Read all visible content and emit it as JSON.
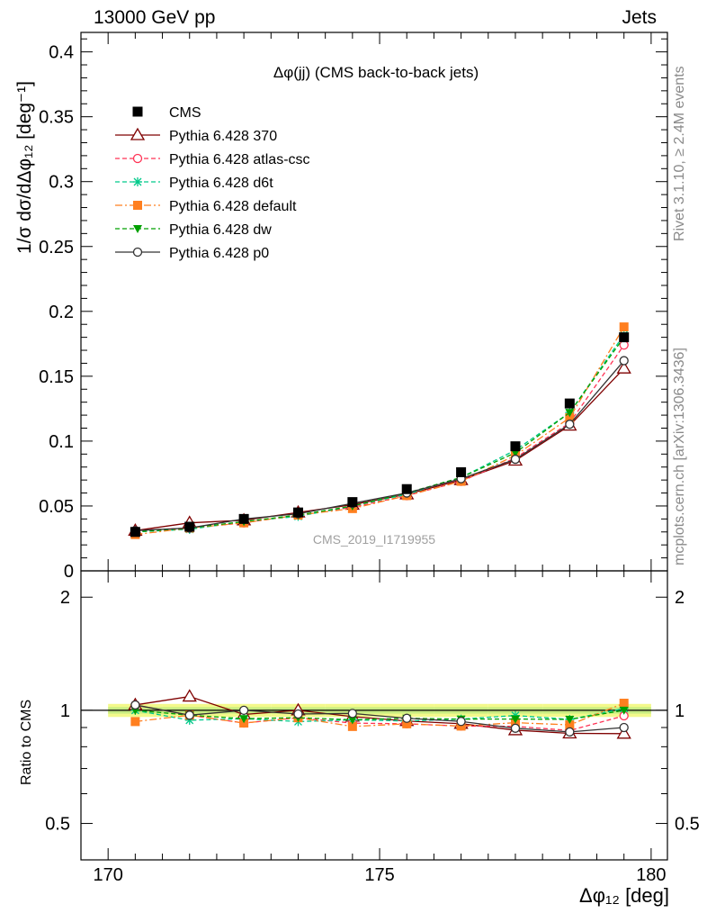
{
  "header": {
    "left": "13000 GeV pp",
    "right": "Jets",
    "rivet": "Rivet 3.1.10, ≥ 2.4M events",
    "mcplots": "mcplots.cern.ch [arXiv:1306.3436]"
  },
  "chart_data": {
    "type": "line",
    "title": "Δφ(jj) (CMS back-to-back jets)",
    "watermark": "CMS_2019_I1719955",
    "xlabel": "Δφ₁₂ [deg]",
    "ylabel": "1/σ dσ/dΔφ₁₂ [deg⁻¹]",
    "ratio_ylabel": "Ratio to CMS",
    "xlim": [
      169.5,
      180.3
    ],
    "ylim": [
      0,
      0.415
    ],
    "ratio_ylim": [
      0.4,
      2.35
    ],
    "x_ticks": [
      "170",
      "175",
      "180"
    ],
    "y_ticks": [
      "0",
      "0.05",
      "0.1",
      "0.15",
      "0.2",
      "0.25",
      "0.3",
      "0.35",
      "0.4"
    ],
    "ratio_ticks": [
      "0.5",
      "1",
      "2"
    ],
    "x": [
      170.5,
      171.5,
      172.5,
      173.5,
      174.5,
      175.5,
      176.5,
      177.5,
      178.5,
      179.5
    ],
    "data": {
      "name": "CMS",
      "values": [
        0.03,
        0.034,
        0.04,
        0.045,
        0.053,
        0.063,
        0.076,
        0.096,
        0.129,
        0.18
      ],
      "ratio_band": [
        0.04,
        0.04,
        0.04,
        0.04,
        0.04,
        0.04,
        0.04,
        0.04,
        0.04,
        0.04
      ]
    },
    "series": [
      {
        "name": "Pythia 6.428 370",
        "color": "#7f0000",
        "dash": "solid",
        "marker": "triangle-open",
        "values": [
          0.031,
          0.037,
          0.039,
          0.045,
          0.051,
          0.059,
          0.07,
          0.085,
          0.112,
          0.156
        ]
      },
      {
        "name": "Pythia 6.428 atlas-csc",
        "color": "#ff3355",
        "dash": "dashed",
        "marker": "circle-open",
        "values": [
          0.031,
          0.033,
          0.037,
          0.043,
          0.049,
          0.058,
          0.069,
          0.087,
          0.114,
          0.174
        ]
      },
      {
        "name": "Pythia 6.428 d6t",
        "color": "#00c98a",
        "dash": "dashed",
        "marker": "star",
        "values": [
          0.03,
          0.032,
          0.038,
          0.042,
          0.05,
          0.059,
          0.072,
          0.093,
          0.122,
          0.182
        ]
      },
      {
        "name": "Pythia 6.428 default",
        "color": "#ff7f1f",
        "dash": "dashdot",
        "marker": "square",
        "values": [
          0.028,
          0.033,
          0.037,
          0.043,
          0.048,
          0.058,
          0.069,
          0.089,
          0.118,
          0.188
        ]
      },
      {
        "name": "Pythia 6.428 dw",
        "color": "#00a000",
        "dash": "dashed",
        "marker": "triangle-down",
        "values": [
          0.03,
          0.033,
          0.038,
          0.043,
          0.05,
          0.06,
          0.072,
          0.091,
          0.122,
          0.18
        ]
      },
      {
        "name": "Pythia 6.428 p0",
        "color": "#333333",
        "dash": "solid",
        "marker": "circle-open",
        "values": [
          0.031,
          0.033,
          0.04,
          0.044,
          0.052,
          0.06,
          0.071,
          0.086,
          0.113,
          0.162
        ]
      }
    ]
  }
}
